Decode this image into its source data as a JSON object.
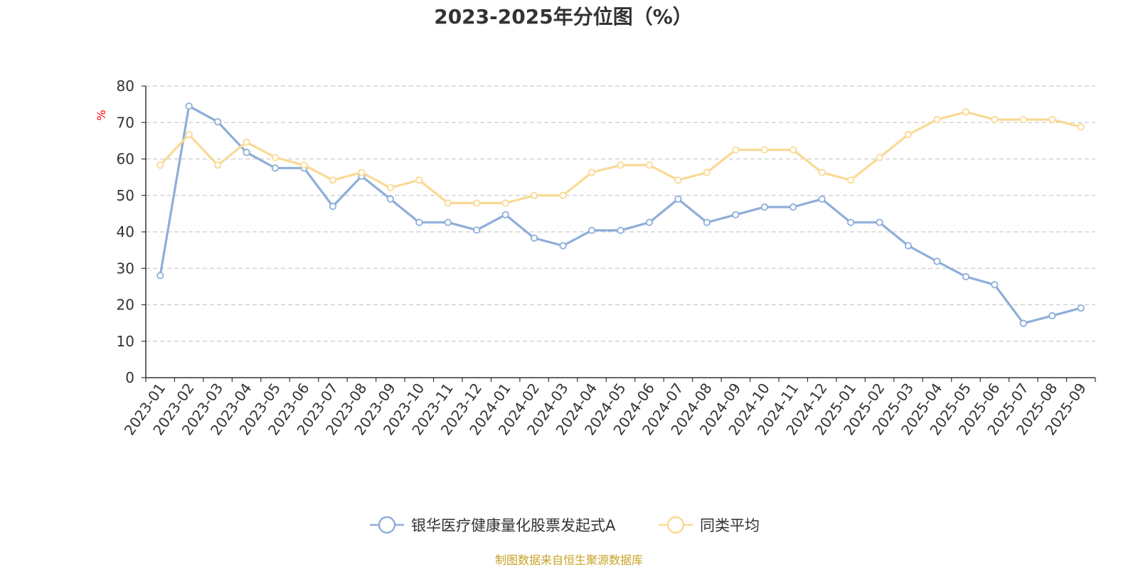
{
  "chart_data": {
    "type": "line",
    "title": "2023-2025年分位图（%）",
    "ylabel": "%",
    "xlabel": "",
    "ylim": [
      0,
      80
    ],
    "yticks": [
      0,
      10,
      20,
      30,
      40,
      50,
      60,
      70,
      80
    ],
    "grid": true,
    "legend_position": "bottom-center",
    "categories": [
      "2023-01",
      "2023-02",
      "2023-03",
      "2023-04",
      "2023-05",
      "2023-06",
      "2023-07",
      "2023-08",
      "2023-09",
      "2023-10",
      "2023-11",
      "2023-12",
      "2024-01",
      "2024-02",
      "2024-03",
      "2024-04",
      "2024-05",
      "2024-06",
      "2024-07",
      "2024-08",
      "2024-09",
      "2024-10",
      "2024-11",
      "2024-12",
      "2025-01",
      "2025-02",
      "2025-03",
      "2025-04",
      "2025-05",
      "2025-06",
      "2025-07",
      "2025-08",
      "2025-09"
    ],
    "series": [
      {
        "name": "银华医疗健康量化股票发起式A",
        "color": "#8eaed9",
        "values": [
          28,
          74.5,
          70.2,
          61.8,
          57.5,
          57.5,
          47,
          55.3,
          49,
          42.6,
          42.6,
          40.5,
          44.7,
          38.3,
          36.2,
          40.4,
          40.4,
          42.6,
          49,
          42.6,
          44.7,
          46.8,
          46.8,
          49,
          42.6,
          42.6,
          36.2,
          31.9,
          27.7,
          25.5,
          14.9,
          17,
          19.1
        ]
      },
      {
        "name": "同类平均",
        "color": "#fad994",
        "values": [
          58.3,
          66.7,
          58.3,
          64.6,
          60.4,
          58.3,
          54.2,
          56.3,
          52.1,
          54.2,
          47.9,
          47.9,
          47.9,
          50,
          50,
          56.3,
          58.3,
          58.3,
          54.2,
          56.3,
          62.5,
          62.5,
          62.5,
          56.3,
          54.2,
          60.4,
          66.7,
          70.8,
          72.9,
          70.8,
          70.8,
          70.8,
          68.8
        ]
      }
    ]
  },
  "footer": {
    "source": "制图数据来自恒生聚源数据库"
  }
}
